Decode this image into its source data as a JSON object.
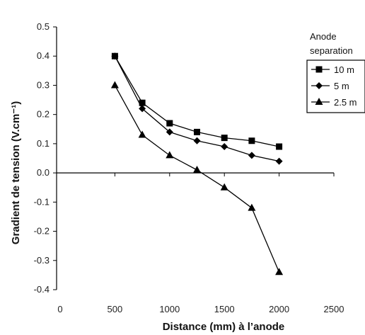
{
  "chart_data": {
    "type": "line",
    "xlabel": "Distance (mm) à l’anode",
    "ylabel": "Gradient de tension (V.cm⁻¹)",
    "xlim": [
      0,
      2500
    ],
    "ylim": [
      -0.4,
      0.5
    ],
    "xticks": [
      "0",
      "500",
      "1000",
      "1500",
      "2000",
      "2500"
    ],
    "yticks": [
      "0.5",
      "0.4",
      "0.3",
      "0.2",
      "0.1",
      "0.0",
      "-0.1",
      "-0.2",
      "-0.3",
      "-0.4"
    ],
    "legend_title": [
      "Anode",
      "separation"
    ],
    "legend_position": "right",
    "grid": false,
    "series": [
      {
        "name": "10 m",
        "marker": "square",
        "x": [
          500,
          750,
          1000,
          1250,
          1500,
          1750,
          2000
        ],
        "y": [
          0.4,
          0.24,
          0.17,
          0.14,
          0.12,
          0.11,
          0.09
        ]
      },
      {
        "name": "5 m",
        "marker": "diamond",
        "x": [
          500,
          750,
          1000,
          1250,
          1500,
          1750,
          2000
        ],
        "y": [
          0.4,
          0.22,
          0.14,
          0.11,
          0.09,
          0.06,
          0.04
        ]
      },
      {
        "name": "2.5 m",
        "marker": "triangle",
        "x": [
          500,
          750,
          1000,
          1250,
          1500,
          1750,
          2000
        ],
        "y": [
          0.3,
          0.13,
          0.06,
          0.01,
          -0.05,
          -0.12,
          -0.34
        ]
      }
    ]
  }
}
